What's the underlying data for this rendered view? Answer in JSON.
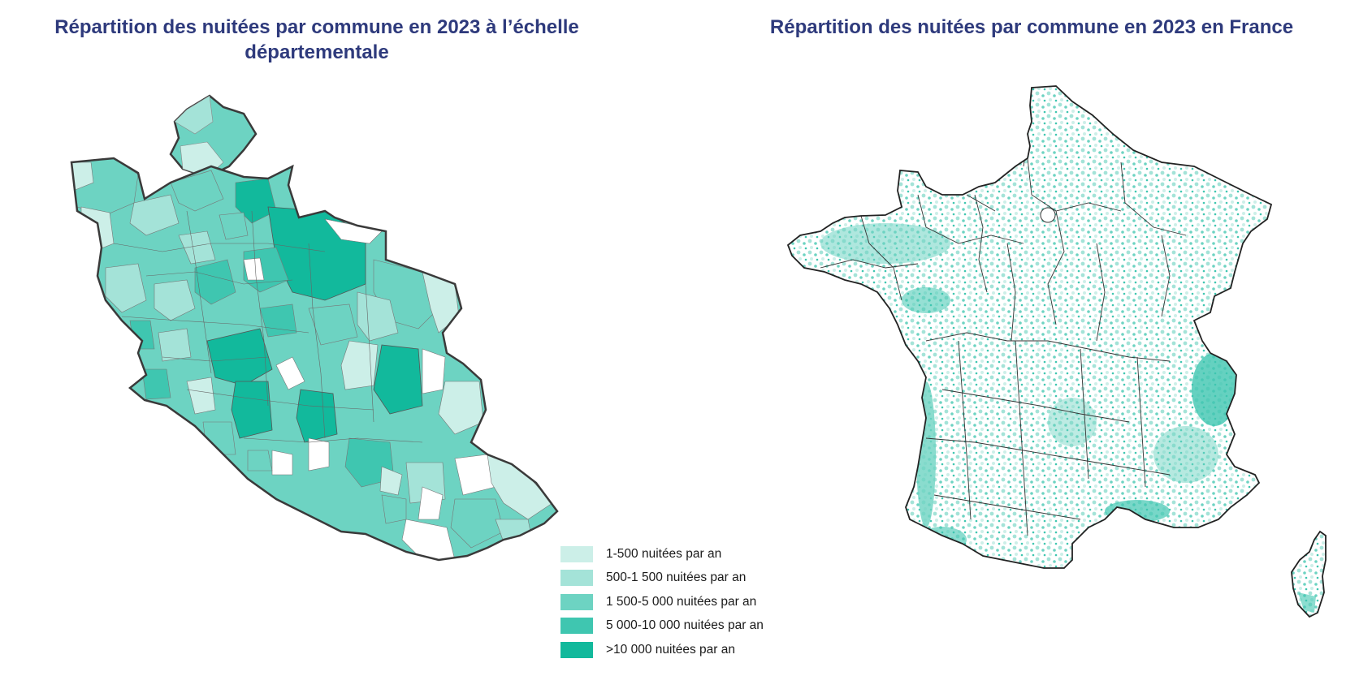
{
  "titles": {
    "left": "Répartition des nuitées par commune en 2023 à l’échelle départementale",
    "right": "Répartition des nuitées par commune en 2023 en France"
  },
  "legend": [
    {
      "label": "1-500 nuitées par an",
      "color": "#ccefe8"
    },
    {
      "label": "500-1 500 nuitées par an",
      "color": "#a4e3d8"
    },
    {
      "label": "1 500-5 000 nuitées par an",
      "color": "#6dd3c2"
    },
    {
      "label": "5 000-10 000 nuitées par an",
      "color": "#3fc6b0"
    },
    {
      "label": ">10 000 nuitées par an",
      "color": "#12b99c"
    }
  ],
  "colors": {
    "title": "#2e3a7c",
    "outline": "#3a3a3a",
    "empty": "#ffffff"
  }
}
